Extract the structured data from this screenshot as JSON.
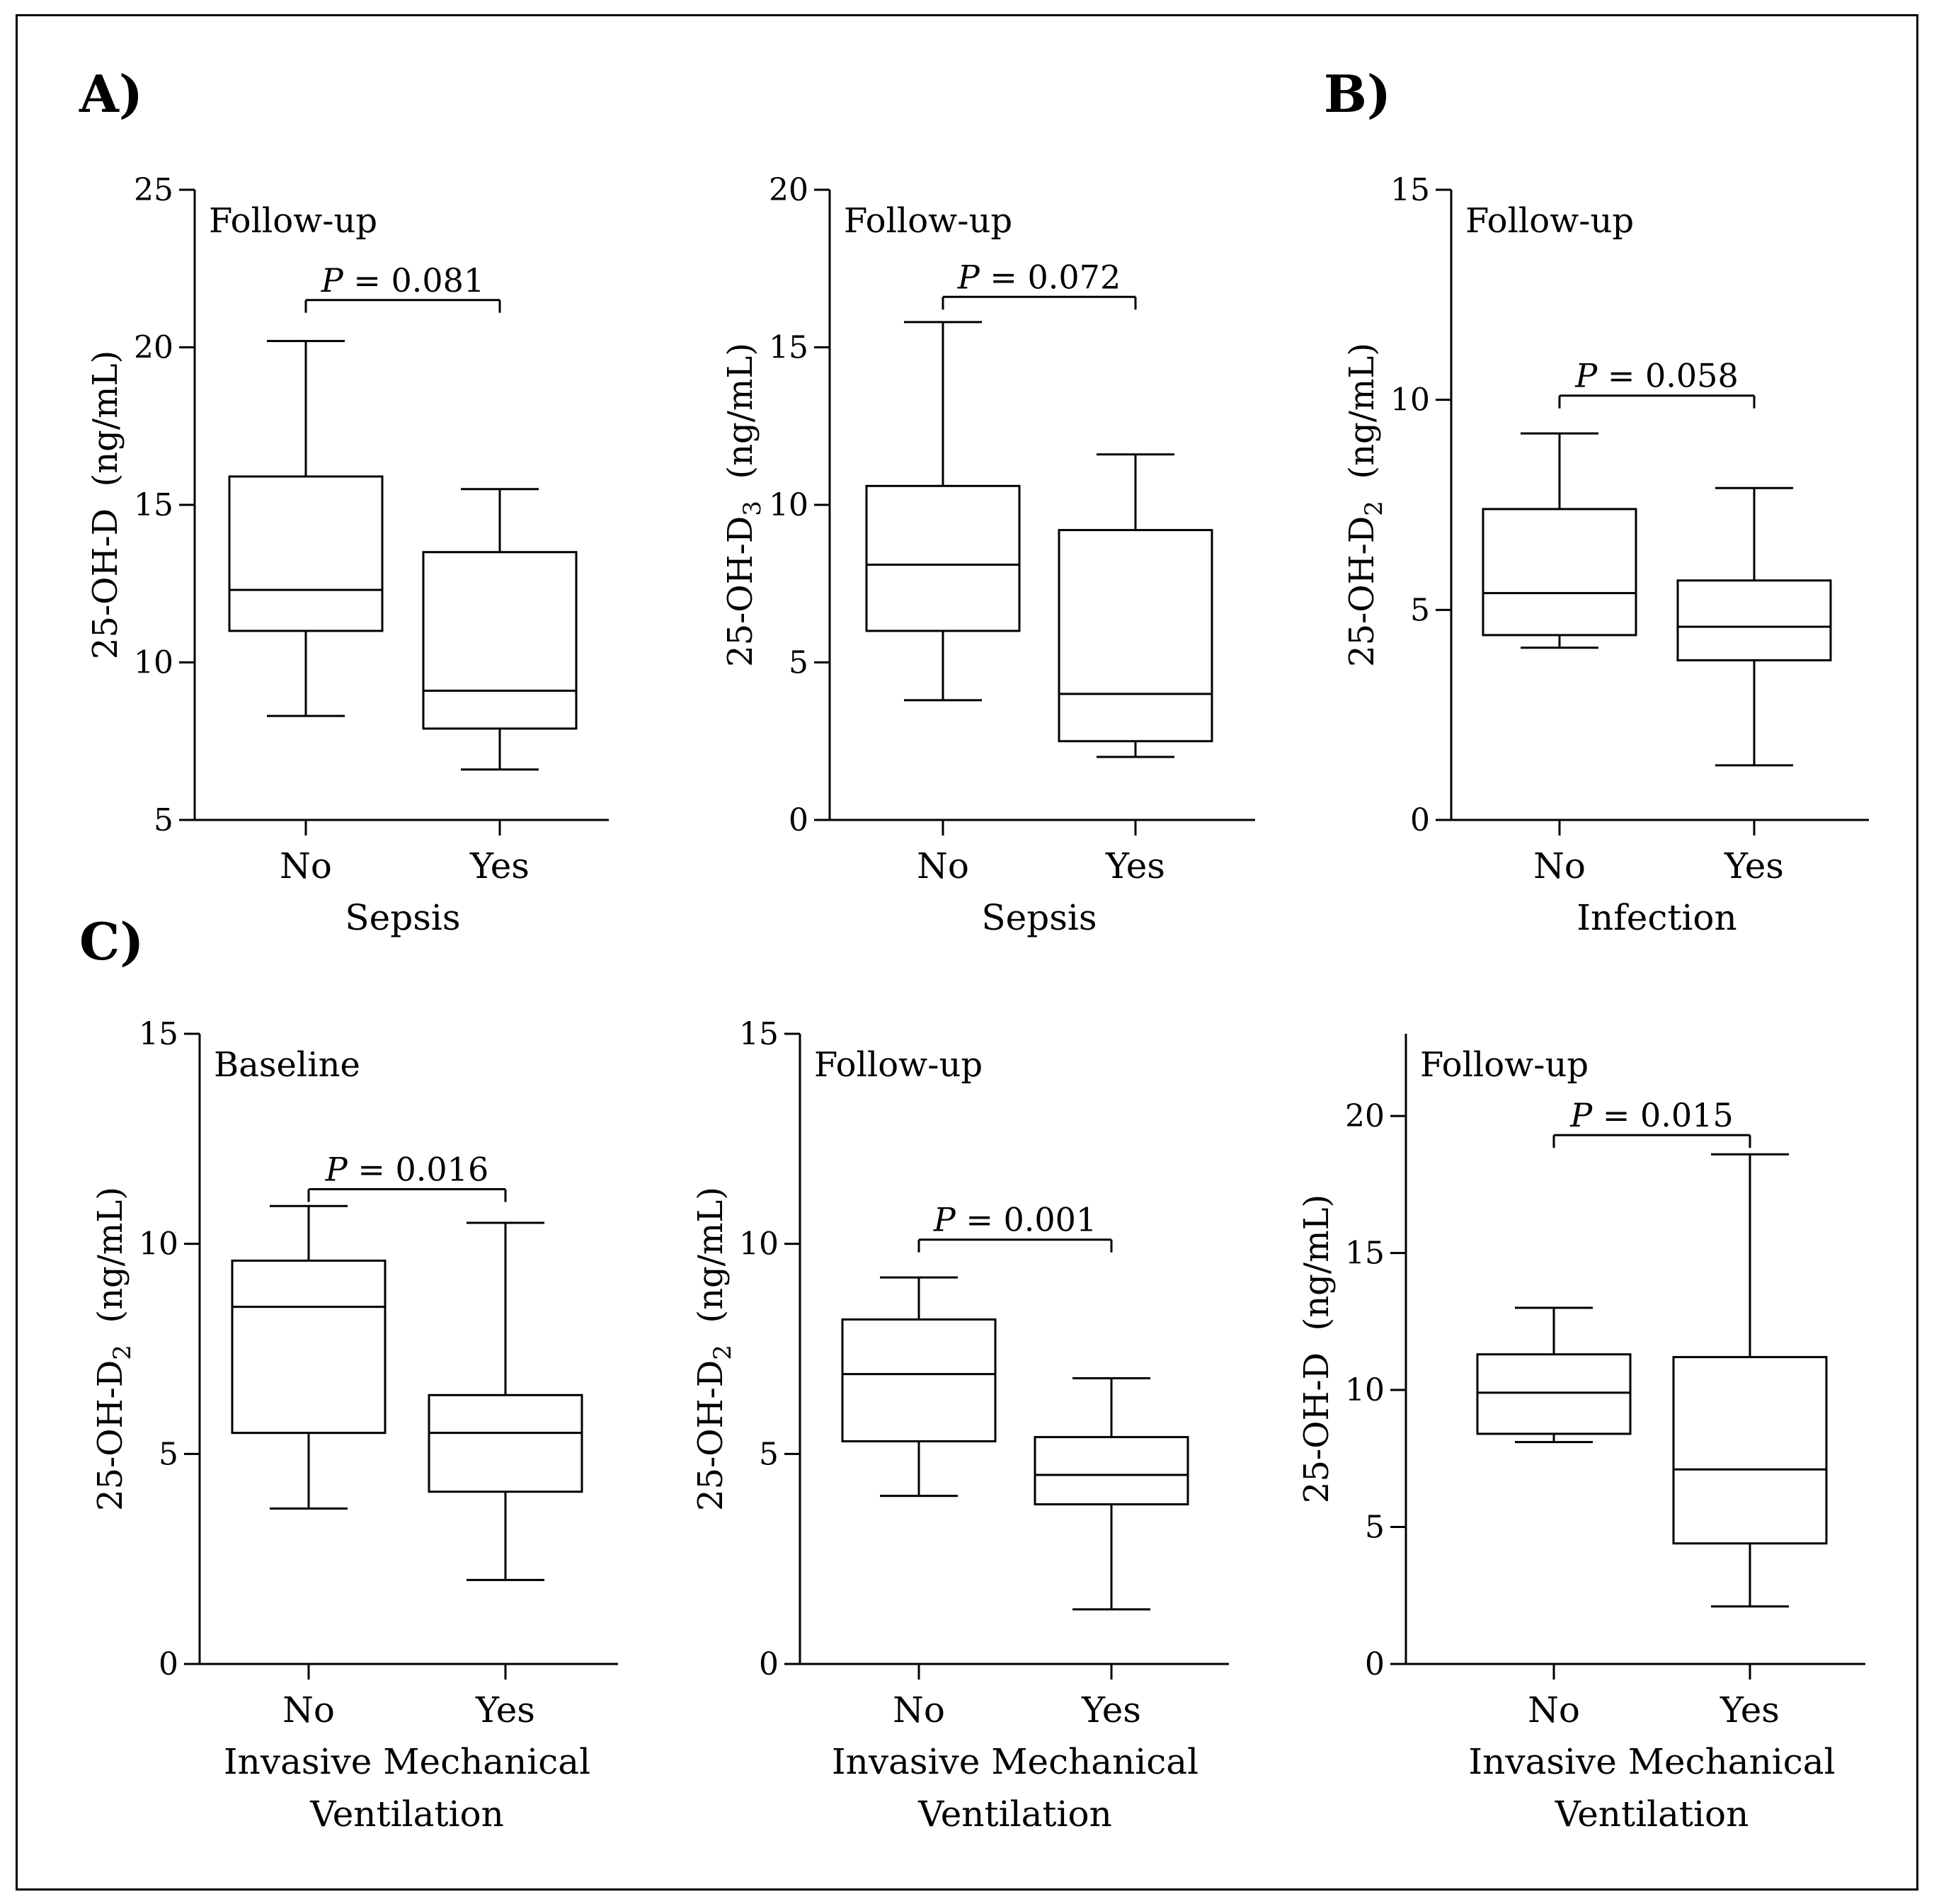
{
  "panel_labels": [
    "A)",
    "B)",
    "C)"
  ],
  "chart_data": [
    {
      "type": "box",
      "panel": "A)",
      "subtitle": "Follow-up",
      "ylabel_main": "25-OH-D",
      "ylabel_sub": "",
      "ylabel_unit": "(ng/mL)",
      "xlabel_lines": [
        "Sepsis"
      ],
      "categories": [
        "No",
        "Yes"
      ],
      "ylim": [
        5,
        25
      ],
      "yticks": [
        5,
        10,
        15,
        20,
        25
      ],
      "boxes": [
        {
          "category": "No",
          "whisker_low": 8.3,
          "q1": 11.0,
          "median": 12.3,
          "q3": 15.9,
          "whisker_high": 20.2
        },
        {
          "category": "Yes",
          "whisker_low": 6.6,
          "q1": 7.9,
          "median": 9.1,
          "q3": 13.5,
          "whisker_high": 15.5
        }
      ],
      "pvalue": {
        "label": "P",
        "text": " = 0.081",
        "y": 21.5
      }
    },
    {
      "type": "box",
      "panel": "",
      "subtitle": "Follow-up",
      "ylabel_main": "25-OH-D",
      "ylabel_sub": "3",
      "ylabel_unit": "(ng/mL)",
      "xlabel_lines": [
        "Sepsis"
      ],
      "categories": [
        "No",
        "Yes"
      ],
      "ylim": [
        0,
        20
      ],
      "yticks": [
        0,
        5,
        10,
        15,
        20
      ],
      "boxes": [
        {
          "category": "No",
          "whisker_low": 3.8,
          "q1": 6.0,
          "median": 8.1,
          "q3": 10.6,
          "whisker_high": 15.8
        },
        {
          "category": "Yes",
          "whisker_low": 2.0,
          "q1": 2.5,
          "median": 4.0,
          "q3": 9.2,
          "whisker_high": 11.6
        }
      ],
      "pvalue": {
        "label": "P",
        "text": " = 0.072",
        "y": 16.6
      }
    },
    {
      "type": "box",
      "panel": "B)",
      "subtitle": "Follow-up",
      "ylabel_main": "25-OH-D",
      "ylabel_sub": "2",
      "ylabel_unit": "(ng/mL)",
      "xlabel_lines": [
        "Infection"
      ],
      "categories": [
        "No",
        "Yes"
      ],
      "ylim": [
        0,
        15
      ],
      "yticks": [
        0,
        5,
        10,
        15
      ],
      "boxes": [
        {
          "category": "No",
          "whisker_low": 4.1,
          "q1": 4.4,
          "median": 5.4,
          "q3": 7.4,
          "whisker_high": 9.2
        },
        {
          "category": "Yes",
          "whisker_low": 1.3,
          "q1": 3.8,
          "median": 4.6,
          "q3": 5.7,
          "whisker_high": 7.9
        }
      ],
      "pvalue": {
        "label": "P",
        "text": " = 0.058",
        "y": 10.1
      }
    },
    {
      "type": "box",
      "panel": "C)",
      "subtitle": "Baseline",
      "ylabel_main": "25-OH-D",
      "ylabel_sub": "2",
      "ylabel_unit": "(ng/mL)",
      "xlabel_lines": [
        "Invasive Mechanical",
        "Ventilation"
      ],
      "categories": [
        "No",
        "Yes"
      ],
      "ylim": [
        0,
        15
      ],
      "yticks": [
        0,
        5,
        10,
        15
      ],
      "boxes": [
        {
          "category": "No",
          "whisker_low": 3.7,
          "q1": 5.5,
          "median": 8.5,
          "q3": 9.6,
          "whisker_high": 10.9
        },
        {
          "category": "Yes",
          "whisker_low": 2.0,
          "q1": 4.1,
          "median": 5.5,
          "q3": 6.4,
          "whisker_high": 10.5
        }
      ],
      "pvalue": {
        "label": "P",
        "text": " = 0.016",
        "y": 11.3
      }
    },
    {
      "type": "box",
      "panel": "",
      "subtitle": "Follow-up",
      "ylabel_main": "25-OH-D",
      "ylabel_sub": "2",
      "ylabel_unit": "(ng/mL)",
      "xlabel_lines": [
        "Invasive Mechanical",
        "Ventilation"
      ],
      "categories": [
        "No",
        "Yes"
      ],
      "ylim": [
        0,
        15
      ],
      "yticks": [
        0,
        5,
        10,
        15
      ],
      "boxes": [
        {
          "category": "No",
          "whisker_low": 4.0,
          "q1": 5.3,
          "median": 6.9,
          "q3": 8.2,
          "whisker_high": 9.2
        },
        {
          "category": "Yes",
          "whisker_low": 1.3,
          "q1": 3.8,
          "median": 4.5,
          "q3": 5.4,
          "whisker_high": 6.8
        }
      ],
      "pvalue": {
        "label": "P",
        "text": " = 0.001",
        "y": 10.1
      }
    },
    {
      "type": "box",
      "panel": "",
      "subtitle": "Follow-up",
      "ylabel_main": "25-OH-D",
      "ylabel_sub": "",
      "ylabel_unit": "(ng/mL)",
      "xlabel_lines": [
        "Invasive Mechanical",
        "Ventilation"
      ],
      "categories": [
        "No",
        "Yes"
      ],
      "ylim": [
        0,
        23
      ],
      "yticks": [
        0,
        5,
        10,
        15,
        20
      ],
      "boxes": [
        {
          "category": "No",
          "whisker_low": 8.1,
          "q1": 8.4,
          "median": 9.9,
          "q3": 11.3,
          "whisker_high": 13.0
        },
        {
          "category": "Yes",
          "whisker_low": 2.1,
          "q1": 4.4,
          "median": 7.1,
          "q3": 11.2,
          "whisker_high": 18.6
        }
      ],
      "pvalue": {
        "label": "P",
        "text": " = 0.015",
        "y": 19.3
      }
    }
  ]
}
